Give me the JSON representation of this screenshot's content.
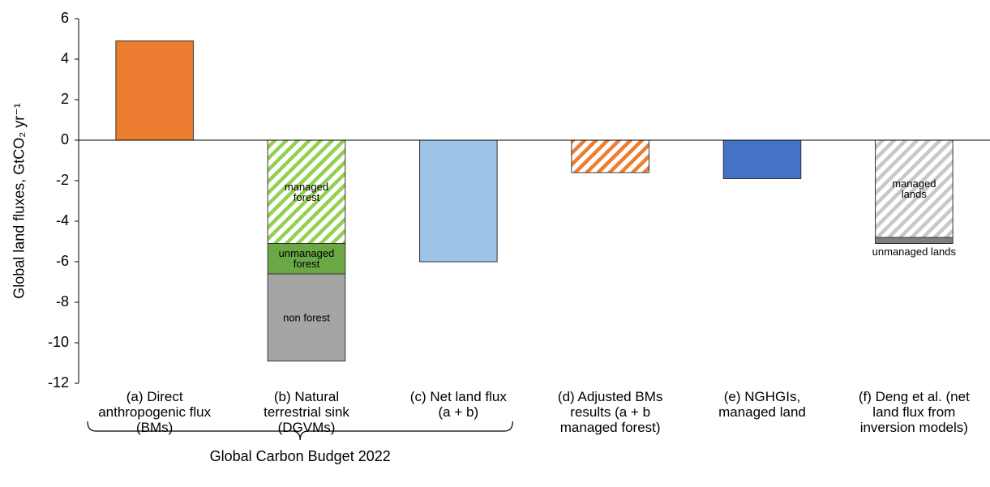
{
  "chart_data": {
    "type": "bar",
    "y_label": "Global land fluxes, GtCO₂ yr⁻¹",
    "categories": [
      "(a) Direct\nanthropogenic flux\n(BMs)",
      "(b) Natural\nterrestrial sink\n(DGVMs)",
      "(c) Net land flux\n(a + b)",
      "(d) Adjusted BMs\nresults (a + b\nmanaged forest)",
      "(e) NGHGIs,\nmanaged land",
      "(f) Deng et al. (net\nland flux from\ninversion models)"
    ],
    "group_label": "Global Carbon Budget 2022",
    "ylim": [
      -12,
      6
    ],
    "yticks": [
      -12,
      -10,
      -8,
      -6,
      -4,
      -2,
      0,
      2,
      4,
      6
    ],
    "stacked": true,
    "series": [
      {
        "color": "#ed7d31",
        "values": [
          4.9,
          null,
          null,
          null,
          null,
          null
        ]
      },
      {
        "name": "managed\nforest",
        "color": "#92d050",
        "hatch": true,
        "values": [
          null,
          -5.1,
          null,
          null,
          null,
          null
        ]
      },
      {
        "name": "unmanaged\nforest",
        "color": "#6aa846",
        "values": [
          null,
          -1.5,
          null,
          null,
          null,
          null
        ]
      },
      {
        "name": "non forest",
        "color": "#a5a5a5",
        "values": [
          null,
          -4.3,
          null,
          null,
          null,
          null
        ]
      },
      {
        "color": "#9dc3e6",
        "values": [
          null,
          null,
          -6.0,
          null,
          null,
          null
        ]
      },
      {
        "color": "#ed7d31",
        "hatch": true,
        "values": [
          null,
          null,
          null,
          -1.6,
          null,
          null
        ]
      },
      {
        "color": "#4472c4",
        "values": [
          null,
          null,
          null,
          null,
          -1.9,
          null
        ]
      },
      {
        "name": "managed\nlands",
        "color": "#c8c8c8",
        "hatch": true,
        "values": [
          null,
          null,
          null,
          null,
          null,
          -4.8
        ]
      },
      {
        "name": "unmanaged lands",
        "color": "#7f7f7f",
        "values": [
          null,
          null,
          null,
          null,
          null,
          -0.3
        ]
      }
    ]
  }
}
